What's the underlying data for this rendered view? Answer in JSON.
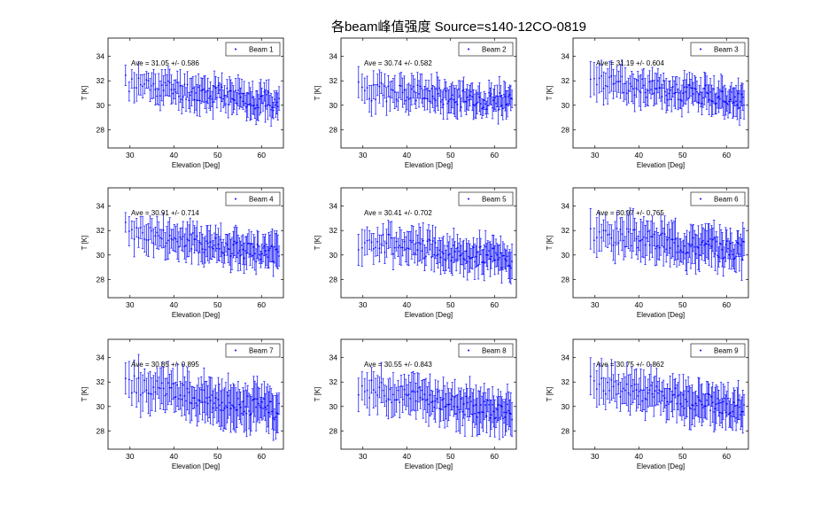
{
  "figure": {
    "title": "各beam峰值强度 Source=s140-12CO-0819"
  },
  "chart_data": [
    {
      "type": "scatter",
      "legend": "Beam 1",
      "annotation": "Ave = 31.05 +/- 0.586",
      "mean": 31.05,
      "err": 1.0,
      "start": 31.8,
      "end": 30.2,
      "xlabel": "Elevation [Deg]",
      "ylabel": "T [K]",
      "xlim": [
        25,
        65
      ],
      "ylim": [
        26.5,
        35.5
      ],
      "xticks": [
        30,
        40,
        50,
        60
      ],
      "yticks": [
        28,
        30,
        32,
        34
      ],
      "legend_position": "top-right",
      "color": "#0000ff",
      "seed": 11
    },
    {
      "type": "scatter",
      "legend": "Beam 2",
      "annotation": "Ave = 30.74 +/- 0.582",
      "mean": 30.74,
      "err": 1.0,
      "start": 31.2,
      "end": 30.3,
      "xlabel": "Elevation [Deg]",
      "ylabel": "T [K]",
      "xlim": [
        25,
        65
      ],
      "ylim": [
        26.5,
        35.5
      ],
      "xticks": [
        30,
        40,
        50,
        60
      ],
      "yticks": [
        28,
        30,
        32,
        34
      ],
      "legend_position": "top-right",
      "color": "#0000ff",
      "seed": 23
    },
    {
      "type": "scatter",
      "legend": "Beam 3",
      "annotation": "Ave = 31.19 +/- 0.604",
      "mean": 31.19,
      "err": 1.05,
      "start": 31.9,
      "end": 30.5,
      "xlabel": "Elevation [Deg]",
      "ylabel": "T [K]",
      "xlim": [
        25,
        65
      ],
      "ylim": [
        26.5,
        35.5
      ],
      "xticks": [
        30,
        40,
        50,
        60
      ],
      "yticks": [
        28,
        30,
        32,
        34
      ],
      "legend_position": "top-right",
      "color": "#0000ff",
      "seed": 37
    },
    {
      "type": "scatter",
      "legend": "Beam 4",
      "annotation": "Ave = 30.91 +/- 0.714",
      "mean": 30.91,
      "err": 1.1,
      "start": 31.9,
      "end": 29.9,
      "xlabel": "Elevation [Deg]",
      "ylabel": "T [K]",
      "xlim": [
        25,
        65
      ],
      "ylim": [
        26.5,
        35.5
      ],
      "xticks": [
        30,
        40,
        50,
        60
      ],
      "yticks": [
        28,
        30,
        32,
        34
      ],
      "legend_position": "top-right",
      "color": "#0000ff",
      "seed": 41
    },
    {
      "type": "scatter",
      "legend": "Beam 5",
      "annotation": "Ave = 30.41 +/- 0.702",
      "mean": 30.41,
      "err": 1.1,
      "start": 31.2,
      "end": 29.6,
      "xlabel": "Elevation [Deg]",
      "ylabel": "T [K]",
      "xlim": [
        25,
        65
      ],
      "ylim": [
        26.5,
        35.5
      ],
      "xticks": [
        30,
        40,
        50,
        60
      ],
      "yticks": [
        28,
        30,
        32,
        34
      ],
      "legend_position": "top-right",
      "color": "#0000ff",
      "seed": 53
    },
    {
      "type": "scatter",
      "legend": "Beam 6",
      "annotation": "Ave = 30.97 +/- 0.765",
      "mean": 30.97,
      "err": 1.3,
      "start": 31.8,
      "end": 30.3,
      "xlabel": "Elevation [Deg]",
      "ylabel": "T [K]",
      "xlim": [
        25,
        65
      ],
      "ylim": [
        26.5,
        35.5
      ],
      "xticks": [
        30,
        40,
        50,
        60
      ],
      "yticks": [
        28,
        30,
        32,
        34
      ],
      "legend_position": "top-right",
      "color": "#0000ff",
      "seed": 67
    },
    {
      "type": "scatter",
      "legend": "Beam 7",
      "annotation": "Ave = 30.85 +/- 0.895",
      "mean": 30.85,
      "err": 1.4,
      "start": 31.9,
      "end": 29.6,
      "xlabel": "Elevation [Deg]",
      "ylabel": "T [K]",
      "xlim": [
        25,
        65
      ],
      "ylim": [
        26.5,
        35.5
      ],
      "xticks": [
        30,
        40,
        50,
        60
      ],
      "yticks": [
        28,
        30,
        32,
        34
      ],
      "legend_position": "top-right",
      "color": "#0000ff",
      "seed": 79
    },
    {
      "type": "scatter",
      "legend": "Beam 8",
      "annotation": "Ave = 30.55 +/- 0.843",
      "mean": 30.55,
      "err": 1.3,
      "start": 31.6,
      "end": 29.4,
      "xlabel": "Elevation [Deg]",
      "ylabel": "T [K]",
      "xlim": [
        25,
        65
      ],
      "ylim": [
        26.5,
        35.5
      ],
      "xticks": [
        30,
        40,
        50,
        60
      ],
      "yticks": [
        28,
        30,
        32,
        34
      ],
      "legend_position": "top-right",
      "color": "#0000ff",
      "seed": 83
    },
    {
      "type": "scatter",
      "legend": "Beam 9",
      "annotation": "Ave = 30.75 +/- 0.862",
      "mean": 30.75,
      "err": 1.3,
      "start": 32.0,
      "end": 29.7,
      "xlabel": "Elevation [Deg]",
      "ylabel": "T [K]",
      "xlim": [
        25,
        65
      ],
      "ylim": [
        26.5,
        35.5
      ],
      "xticks": [
        30,
        40,
        50,
        60
      ],
      "yticks": [
        28,
        30,
        32,
        34
      ],
      "legend_position": "top-right",
      "color": "#0000ff",
      "seed": 97
    }
  ]
}
